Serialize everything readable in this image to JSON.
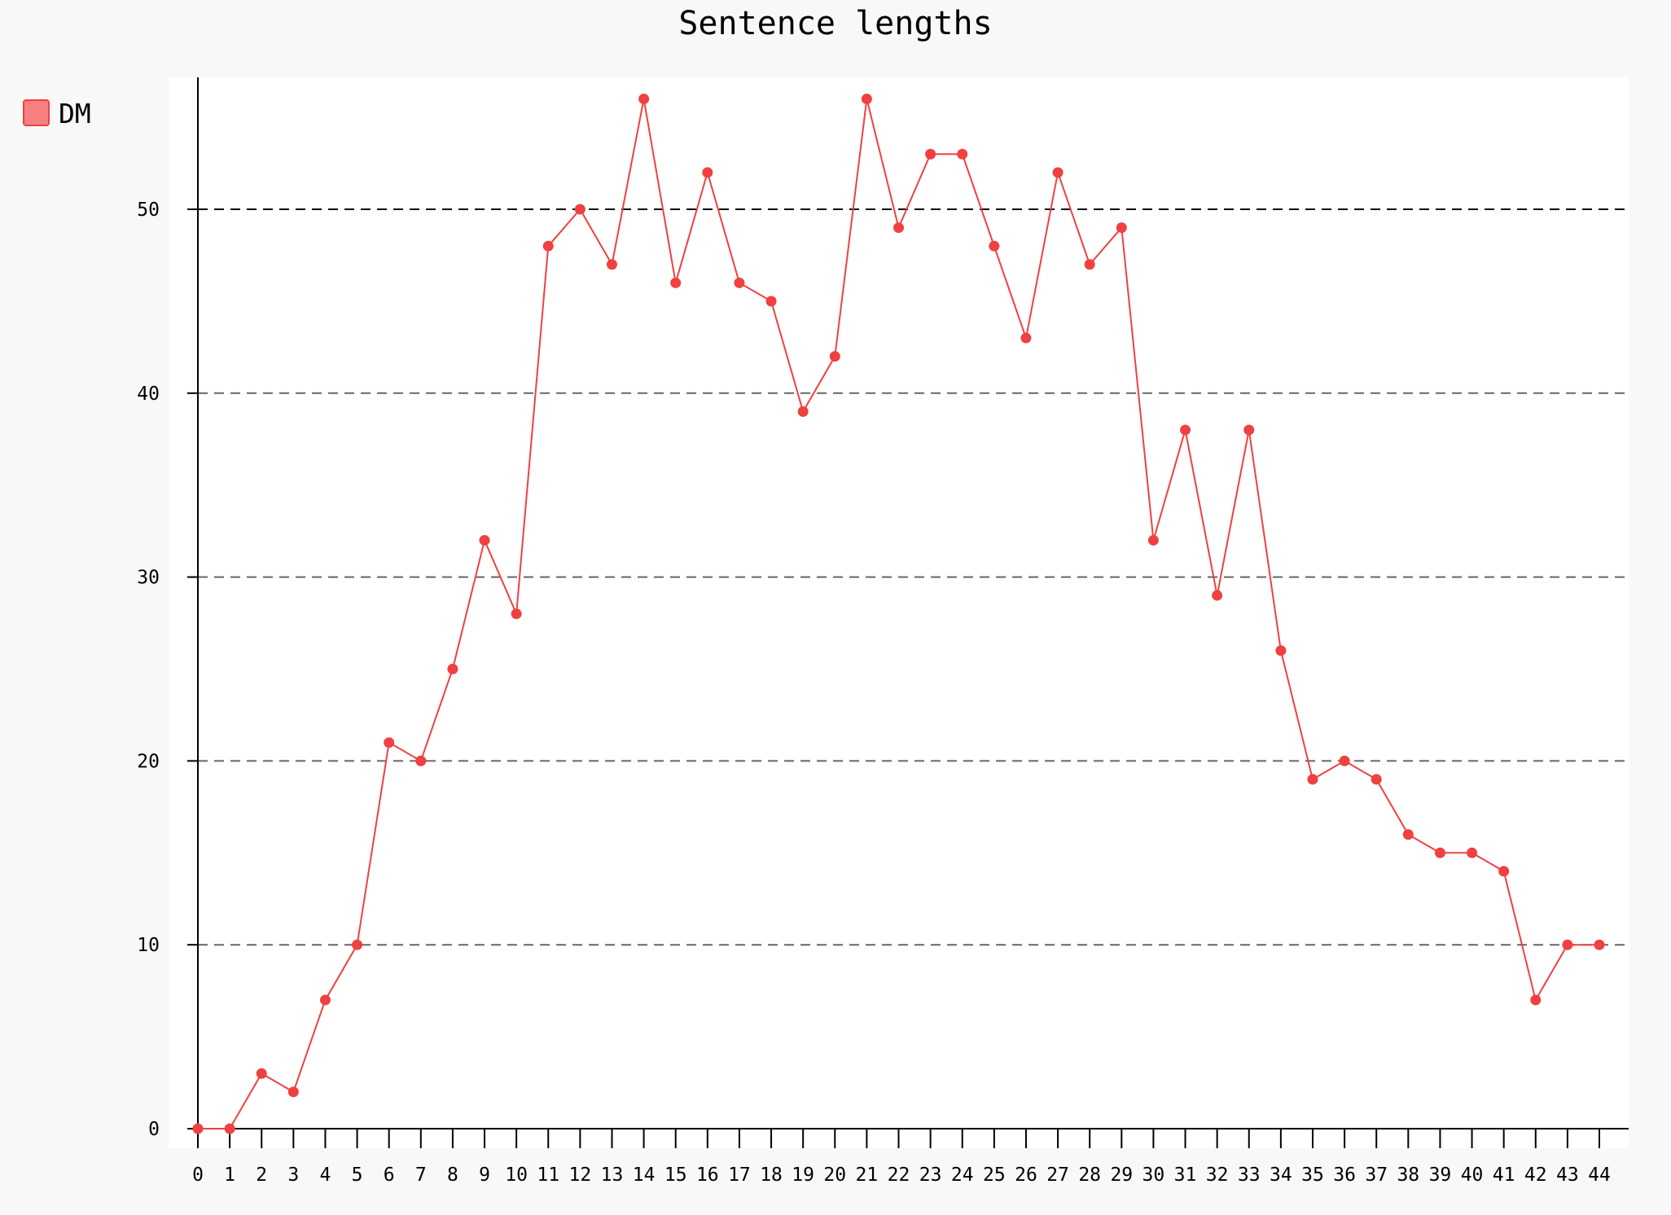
{
  "chart_data": {
    "type": "line",
    "title": "Sentence lengths",
    "xlabel": "",
    "ylabel": "",
    "x": [
      0,
      1,
      2,
      3,
      4,
      5,
      6,
      7,
      8,
      9,
      10,
      11,
      12,
      13,
      14,
      15,
      16,
      17,
      18,
      19,
      20,
      21,
      22,
      23,
      24,
      25,
      26,
      27,
      28,
      29,
      30,
      31,
      32,
      33,
      34,
      35,
      36,
      37,
      38,
      39,
      40,
      41,
      42,
      43,
      44
    ],
    "x_tick_labels": [
      "0",
      "1",
      "2",
      "3",
      "4",
      "5",
      "6",
      "7",
      "8",
      "9",
      "10",
      "11",
      "12",
      "13",
      "14",
      "15",
      "16",
      "17",
      "18",
      "19",
      "20",
      "21",
      "22",
      "23",
      "24",
      "25",
      "26",
      "27",
      "28",
      "29",
      "30",
      "31",
      "32",
      "33",
      "34",
      "35",
      "36",
      "37",
      "38",
      "39",
      "40",
      "41",
      "42",
      "43",
      "44"
    ],
    "y_ticks": [
      0,
      10,
      20,
      30,
      40,
      50
    ],
    "y_tick_labels": [
      "0",
      "10",
      "20",
      "30",
      "40",
      "50"
    ],
    "ylim": [
      -1,
      57.1
    ],
    "xlim": [
      -0.9,
      45.2
    ],
    "grid": "horizontal dashed",
    "legend_position": "top-left",
    "series": [
      {
        "name": "DM",
        "color": "#f04040",
        "values": [
          0,
          0,
          3,
          2,
          7,
          10,
          21,
          20,
          25,
          32,
          28,
          48,
          50,
          47,
          56,
          46,
          52,
          46,
          45,
          39,
          42,
          56,
          49,
          53,
          53,
          48,
          43,
          52,
          47,
          49,
          32,
          38,
          29,
          38,
          26,
          19,
          20,
          19,
          16,
          15,
          15,
          14,
          7,
          10,
          10
        ]
      }
    ]
  }
}
